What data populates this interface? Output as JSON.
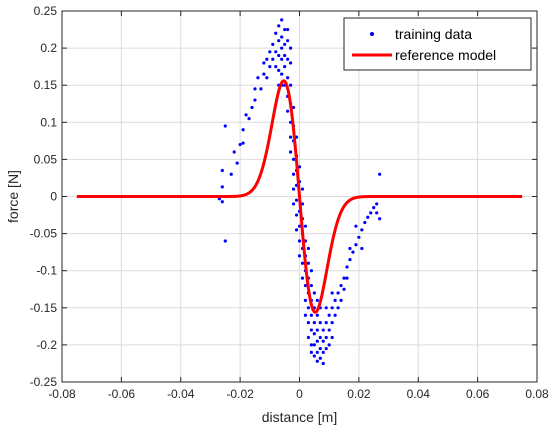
{
  "chart_data": {
    "type": "scatter",
    "title": "",
    "xlabel": "distance [m]",
    "ylabel": "force [N]",
    "xlim": [
      -0.08,
      0.08
    ],
    "ylim": [
      -0.25,
      0.25
    ],
    "xticks": [
      -0.08,
      -0.06,
      -0.04,
      -0.02,
      0,
      0.02,
      0.04,
      0.06,
      0.08
    ],
    "yticks": [
      -0.25,
      -0.2,
      -0.15,
      -0.1,
      -0.05,
      0,
      0.05,
      0.1,
      0.15,
      0.2,
      0.25
    ],
    "xtick_labels": [
      "-0.08",
      "-0.06",
      "-0.04",
      "-0.02",
      "0",
      "0.02",
      "0.04",
      "0.06",
      "0.08"
    ],
    "ytick_labels": [
      "-0.25",
      "-0.2",
      "-0.15",
      "-0.1",
      "-0.05",
      "0",
      "0.05",
      "0.1",
      "0.15",
      "0.2",
      "0.25"
    ],
    "grid": true,
    "legend_position": "top-right",
    "series": [
      {
        "name": "training data",
        "kind": "scatter",
        "color": "#0000ff",
        "points": [
          [
            -0.026,
            0.035
          ],
          [
            -0.026,
            0.013
          ],
          [
            -0.027,
            -0.003
          ],
          [
            -0.026,
            -0.007
          ],
          [
            -0.025,
            -0.06
          ],
          [
            -0.025,
            0.095
          ],
          [
            -0.022,
            0.06
          ],
          [
            -0.021,
            0.045
          ],
          [
            -0.02,
            0.07
          ],
          [
            -0.019,
            0.072
          ],
          [
            -0.018,
            0.11
          ],
          [
            -0.017,
            0.105
          ],
          [
            -0.016,
            0.12
          ],
          [
            -0.015,
            0.145
          ],
          [
            -0.014,
            0.16
          ],
          [
            -0.013,
            0.145
          ],
          [
            -0.012,
            0.165
          ],
          [
            -0.011,
            0.185
          ],
          [
            -0.011,
            0.16
          ],
          [
            -0.01,
            0.195
          ],
          [
            -0.01,
            0.175
          ],
          [
            -0.009,
            0.205
          ],
          [
            -0.009,
            0.185
          ],
          [
            -0.008,
            0.22
          ],
          [
            -0.008,
            0.195
          ],
          [
            -0.008,
            0.175
          ],
          [
            -0.007,
            0.23
          ],
          [
            -0.007,
            0.21
          ],
          [
            -0.007,
            0.19
          ],
          [
            -0.007,
            0.17
          ],
          [
            -0.006,
            0.238
          ],
          [
            -0.006,
            0.215
          ],
          [
            -0.006,
            0.2
          ],
          [
            -0.006,
            0.185
          ],
          [
            -0.006,
            0.165
          ],
          [
            -0.005,
            0.225
          ],
          [
            -0.005,
            0.205
          ],
          [
            -0.005,
            0.19
          ],
          [
            -0.005,
            0.175
          ],
          [
            -0.005,
            0.15
          ],
          [
            -0.004,
            0.21
          ],
          [
            -0.004,
            0.185
          ],
          [
            -0.004,
            0.16
          ],
          [
            -0.004,
            0.135
          ],
          [
            -0.004,
            0.115
          ],
          [
            -0.003,
            0.18
          ],
          [
            -0.003,
            0.15
          ],
          [
            -0.003,
            0.125
          ],
          [
            -0.003,
            0.1
          ],
          [
            -0.003,
            0.08
          ],
          [
            -0.003,
            0.06
          ],
          [
            -0.002,
            0.12
          ],
          [
            -0.002,
            0.095
          ],
          [
            -0.002,
            0.075
          ],
          [
            -0.002,
            0.05
          ],
          [
            -0.002,
            0.03
          ],
          [
            -0.002,
            0.01
          ],
          [
            -0.001,
            0.08
          ],
          [
            -0.001,
            0.055
          ],
          [
            -0.001,
            0.035
          ],
          [
            -0.001,
            0.015
          ],
          [
            -0.001,
            -0.005
          ],
          [
            -0.001,
            -0.025
          ],
          [
            0.0,
            0.04
          ],
          [
            0.0,
            0.02
          ],
          [
            0.0,
            0.0
          ],
          [
            0.0,
            -0.02
          ],
          [
            0.0,
            -0.04
          ],
          [
            0.0,
            -0.06
          ],
          [
            0.001,
            0.01
          ],
          [
            0.001,
            -0.01
          ],
          [
            0.001,
            -0.03
          ],
          [
            0.001,
            -0.05
          ],
          [
            0.001,
            -0.07
          ],
          [
            0.001,
            -0.09
          ],
          [
            0.002,
            -0.04
          ],
          [
            0.002,
            -0.06
          ],
          [
            0.002,
            -0.08
          ],
          [
            0.002,
            -0.1
          ],
          [
            0.002,
            -0.12
          ],
          [
            0.002,
            -0.14
          ],
          [
            0.003,
            -0.09
          ],
          [
            0.003,
            -0.11
          ],
          [
            0.003,
            -0.13
          ],
          [
            0.003,
            -0.15
          ],
          [
            0.003,
            -0.17
          ],
          [
            0.003,
            -0.19
          ],
          [
            0.004,
            -0.12
          ],
          [
            0.004,
            -0.14
          ],
          [
            0.004,
            -0.16
          ],
          [
            0.004,
            -0.18
          ],
          [
            0.004,
            -0.2
          ],
          [
            0.004,
            -0.21
          ],
          [
            0.005,
            -0.15
          ],
          [
            0.005,
            -0.17
          ],
          [
            0.005,
            -0.185
          ],
          [
            0.005,
            -0.2
          ],
          [
            0.005,
            -0.215
          ],
          [
            0.006,
            -0.16
          ],
          [
            0.006,
            -0.18
          ],
          [
            0.006,
            -0.195
          ],
          [
            0.006,
            -0.21
          ],
          [
            0.006,
            -0.222
          ],
          [
            0.007,
            -0.17
          ],
          [
            0.007,
            -0.19
          ],
          [
            0.007,
            -0.205
          ],
          [
            0.007,
            -0.218
          ],
          [
            0.008,
            -0.18
          ],
          [
            0.008,
            -0.195
          ],
          [
            0.008,
            -0.21
          ],
          [
            0.008,
            -0.225
          ],
          [
            0.009,
            -0.17
          ],
          [
            0.009,
            -0.19
          ],
          [
            0.009,
            -0.205
          ],
          [
            0.01,
            -0.16
          ],
          [
            0.01,
            -0.18
          ],
          [
            0.01,
            -0.2
          ],
          [
            0.011,
            -0.15
          ],
          [
            0.011,
            -0.17
          ],
          [
            0.011,
            -0.19
          ],
          [
            0.012,
            -0.14
          ],
          [
            0.012,
            -0.16
          ],
          [
            0.013,
            -0.13
          ],
          [
            0.013,
            -0.15
          ],
          [
            0.014,
            -0.12
          ],
          [
            0.014,
            -0.14
          ],
          [
            0.015,
            -0.11
          ],
          [
            0.015,
            -0.125
          ],
          [
            0.016,
            -0.095
          ],
          [
            0.016,
            -0.11
          ],
          [
            0.017,
            -0.085
          ],
          [
            0.018,
            -0.075
          ],
          [
            0.019,
            -0.065
          ],
          [
            0.02,
            -0.055
          ],
          [
            0.021,
            -0.045
          ],
          [
            0.022,
            -0.035
          ],
          [
            0.023,
            -0.028
          ],
          [
            0.024,
            -0.022
          ],
          [
            0.025,
            -0.015
          ],
          [
            0.026,
            -0.01
          ],
          [
            0.026,
            -0.022
          ],
          [
            0.027,
            0.03
          ],
          [
            0.027,
            -0.03
          ],
          [
            0.019,
            -0.04
          ],
          [
            0.021,
            -0.07
          ],
          [
            0.017,
            -0.07
          ],
          [
            -0.023,
            0.03
          ],
          [
            -0.019,
            0.09
          ],
          [
            -0.015,
            0.13
          ],
          [
            -0.012,
            0.18
          ],
          [
            -0.001,
            -0.045
          ],
          [
            0.001,
            -0.11
          ],
          [
            0.0,
            -0.08
          ],
          [
            -0.002,
            -0.01
          ],
          [
            0.003,
            -0.07
          ],
          [
            0.004,
            -0.1
          ],
          [
            -0.003,
            0.2
          ],
          [
            -0.004,
            0.225
          ],
          [
            -0.006,
            0.15
          ],
          [
            -0.007,
            0.15
          ],
          [
            0.006,
            -0.14
          ],
          [
            0.007,
            -0.15
          ],
          [
            0.002,
            -0.16
          ],
          [
            0.005,
            -0.13
          ],
          [
            0.009,
            -0.15
          ],
          [
            0.011,
            -0.13
          ]
        ]
      },
      {
        "name": "reference model",
        "kind": "line",
        "color": "#ff0000",
        "function": "y = -A*x*exp(-(x/s)^2)",
        "params": {
          "A": 48.5,
          "s": 0.0075
        },
        "domain": [
          -0.075,
          0.075
        ]
      }
    ]
  }
}
